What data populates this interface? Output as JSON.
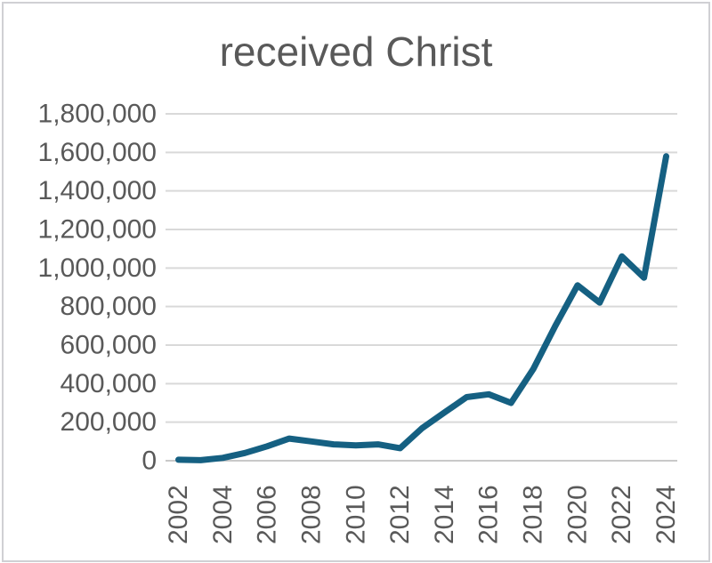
{
  "window": {
    "background": "#ffffff",
    "border_color": "#d0d0d4"
  },
  "chart_data": {
    "type": "line",
    "title": "received Christ",
    "x": [
      2002,
      2003,
      2004,
      2005,
      2006,
      2007,
      2008,
      2009,
      2010,
      2011,
      2012,
      2013,
      2014,
      2015,
      2016,
      2017,
      2018,
      2019,
      2020,
      2021,
      2022,
      2023,
      2024
    ],
    "series": [
      {
        "name": "received Christ",
        "color": "#156082",
        "values": [
          5000,
          3000,
          15000,
          40000,
          75000,
          115000,
          100000,
          85000,
          80000,
          85000,
          65000,
          170000,
          250000,
          330000,
          345000,
          300000,
          475000,
          700000,
          910000,
          820000,
          1060000,
          950000,
          1580000
        ]
      }
    ],
    "x_tick_labels": [
      "2002",
      "2004",
      "2006",
      "2008",
      "2010",
      "2012",
      "2014",
      "2016",
      "2018",
      "2020",
      "2022",
      "2024"
    ],
    "y_ticks": {
      "values": [
        0,
        200000,
        400000,
        600000,
        800000,
        1000000,
        1200000,
        1400000,
        1600000,
        1800000
      ],
      "labels": [
        "0",
        "200,000",
        "400,000",
        "600,000",
        "800,000",
        "1,000,000",
        "1,200,000",
        "1,400,000",
        "1,600,000",
        "1,800,000"
      ]
    },
    "ylim": [
      0,
      1800000
    ],
    "xlabel": "",
    "ylabel": "",
    "grid": "horizontal",
    "legend": "none",
    "colors": {
      "line": "#156082",
      "grid": "#d9d9d9",
      "axis": "#c9c9c9",
      "text": "#595959"
    }
  }
}
